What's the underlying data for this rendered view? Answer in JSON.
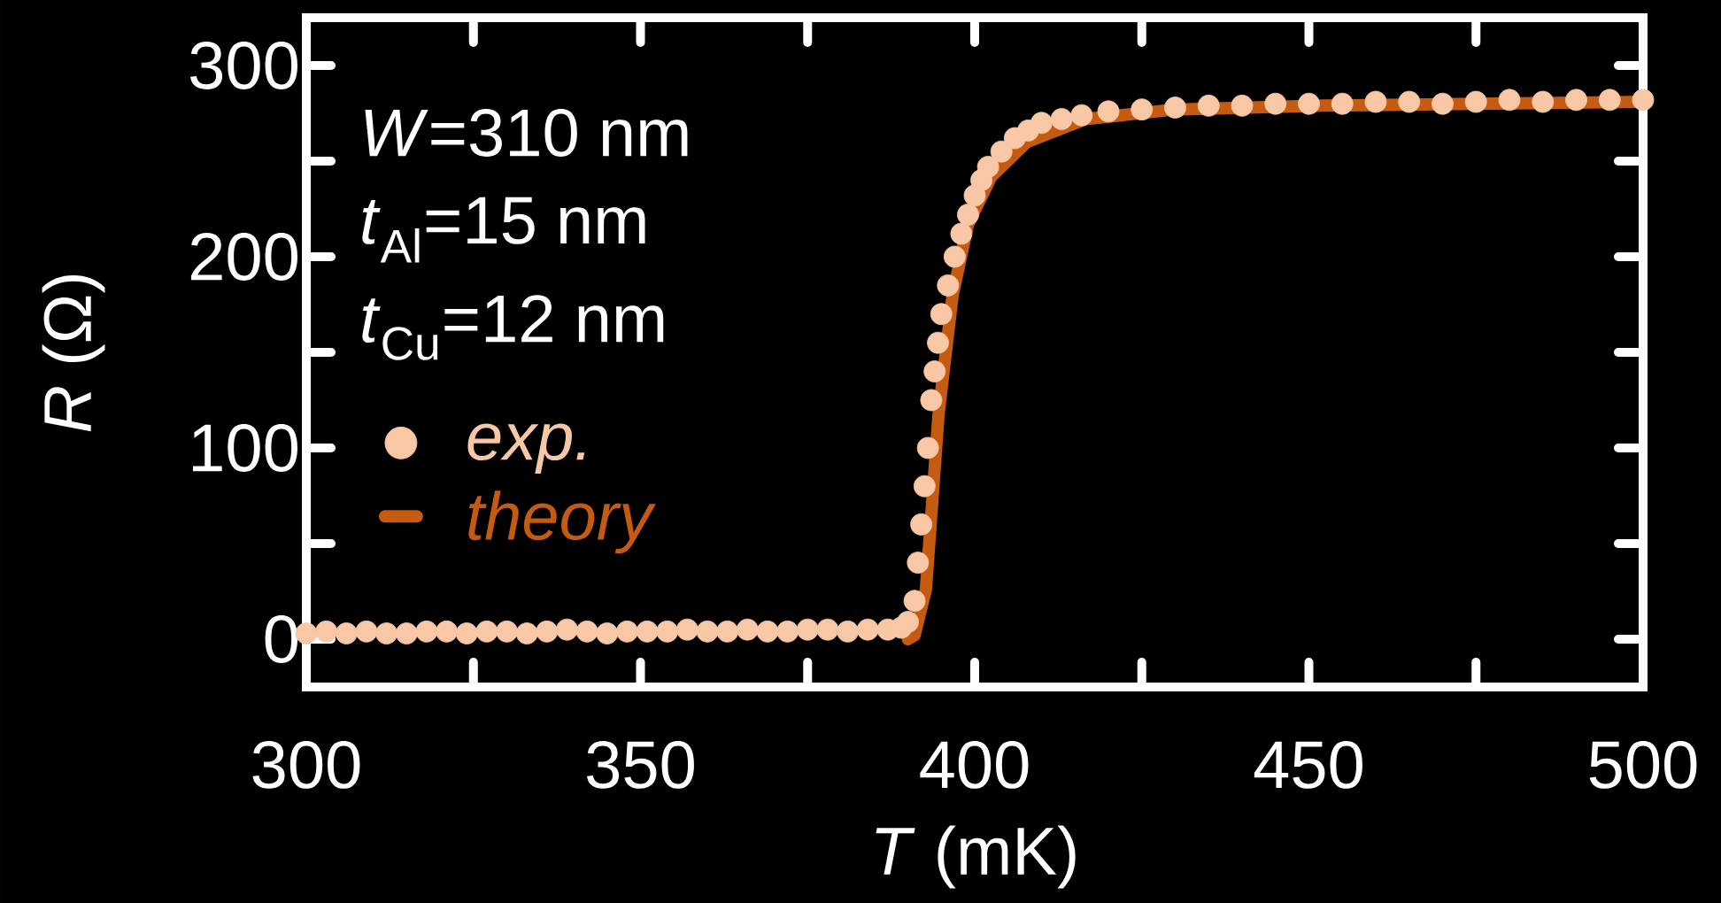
{
  "chart_data": {
    "type": "scatter",
    "xlabel": "*T* (mK)",
    "ylabel": "*R* (Ω)",
    "annotations": [
      "*W*=310 nm",
      "*t*$_{Al}$=15 nm",
      "*t*$_{Cu}$=12 nm"
    ],
    "xlim": [
      300,
      500
    ],
    "ylim": [
      -25,
      325
    ],
    "xticks": [
      300,
      {
        "value": 325,
        "label": null
      },
      350,
      {
        "value": 375,
        "label": null
      },
      400,
      {
        "value": 425,
        "label": null
      },
      450,
      {
        "value": 475,
        "label": null
      },
      500
    ],
    "yticks": [
      0,
      {
        "value": 50,
        "label": null
      },
      100,
      {
        "value": 150,
        "label": null
      },
      200,
      {
        "value": 250,
        "label": null
      },
      300
    ],
    "legend": "left",
    "marker": "circle",
    "series": [
      {
        "name": "exp.",
        "color": "#f8c8a6",
        "x": [
          300,
          303,
          306,
          309,
          312,
          315,
          318,
          321,
          324,
          327,
          330,
          333,
          336,
          339,
          342,
          345,
          348,
          351,
          354,
          357,
          360,
          363,
          366,
          369,
          372,
          375,
          378,
          381,
          384,
          387,
          389,
          390,
          391,
          391.5,
          392,
          392.5,
          393,
          393.5,
          394,
          394.5,
          395,
          396,
          397,
          398,
          399,
          400,
          401,
          402,
          404,
          406,
          408,
          410,
          413,
          416,
          420,
          425,
          430,
          435,
          440,
          445,
          450,
          455,
          460,
          465,
          470,
          475,
          480,
          485,
          490,
          495,
          500
        ],
        "values": [
          3,
          4,
          3,
          4,
          3,
          3,
          4,
          4,
          3,
          4,
          4,
          3,
          4,
          5,
          4,
          3,
          4,
          4,
          4,
          5,
          4,
          4,
          5,
          4,
          4,
          5,
          5,
          4,
          5,
          5,
          6,
          9,
          20,
          40,
          60,
          80,
          100,
          125,
          140,
          155,
          170,
          185,
          200,
          212,
          222,
          232,
          240,
          247,
          255,
          262,
          266,
          270,
          272,
          274,
          276,
          277,
          278,
          279,
          279,
          280,
          280,
          280,
          281,
          281,
          280,
          281,
          282,
          281,
          282,
          282,
          282
        ]
      },
      {
        "name": "theory",
        "type": "line",
        "marker": "none",
        "color": "#c55a11",
        "x": [
          390,
          391,
          392.7,
          394.6,
          396.7,
          399,
          402.5,
          407.8,
          416.6,
          430,
          452,
          475,
          500
        ],
        "values": [
          0,
          2,
          26,
          118,
          180,
          217,
          242,
          260,
          272,
          277,
          279,
          280,
          281
        ]
      }
    ]
  }
}
